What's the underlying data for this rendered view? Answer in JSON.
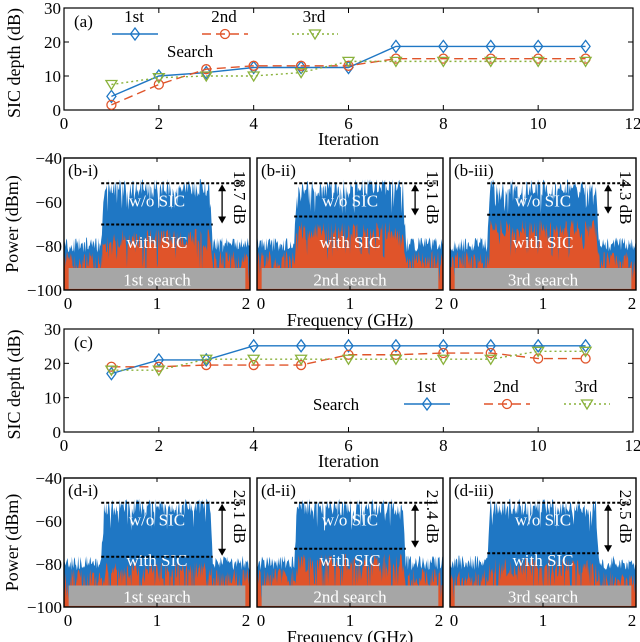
{
  "chart_data": [
    {
      "type": "line",
      "panel": "(a)",
      "xlabel": "Iteration",
      "ylabel": "SIC depth (dB)",
      "xlim": [
        0,
        12
      ],
      "ylim": [
        0,
        30
      ],
      "xticks": [
        0,
        2,
        4,
        6,
        8,
        10,
        12
      ],
      "yticks": [
        0,
        10,
        20,
        30
      ],
      "legend_title": "Search",
      "legend_placement": "top-left",
      "x": [
        1,
        2,
        3,
        4,
        5,
        6,
        7,
        8,
        9,
        10,
        11
      ],
      "series": [
        {
          "name": "1st",
          "color": "#1f77c4",
          "marker": "diamond",
          "dash": "solid",
          "values": [
            4,
            10,
            11,
            12.5,
            12.5,
            12.5,
            18.7,
            18.7,
            18.7,
            18.7,
            18.7
          ]
        },
        {
          "name": "2nd",
          "color": "#e0542a",
          "marker": "circle",
          "dash": "dashed",
          "values": [
            1.5,
            7.5,
            12,
            13,
            13,
            13,
            15.1,
            15.1,
            15.1,
            15.1,
            15.1
          ]
        },
        {
          "name": "3rd",
          "color": "#8ab23c",
          "marker": "triangle-down",
          "dash": "dotted",
          "values": [
            7.5,
            9.5,
            10,
            10,
            11,
            14.3,
            14.3,
            14.3,
            14.3,
            14.3,
            14.3
          ]
        }
      ]
    },
    {
      "type": "area",
      "group": "b",
      "xlabel": "Frequency (GHz)",
      "ylabel": "Power (dBm)",
      "xlim": [
        0,
        2
      ],
      "ylim": [
        -100,
        -40
      ],
      "xticks": [
        0,
        1,
        2
      ],
      "yticks": [
        -40,
        -60,
        -80,
        -100
      ],
      "series_labels": {
        "wo": "w/o SIC",
        "with": "with SIC"
      },
      "colors": {
        "wo": "#1f77c4",
        "with": "#e0542a",
        "banner": "#a6a6a6"
      },
      "panels": [
        {
          "label": "(b-i)",
          "banner": "1st search",
          "depth_label": "18.7 dB",
          "top_dbm": -51.5,
          "bottom_dbm": -70.2,
          "band_ghz": [
            0.4,
            1.6
          ]
        },
        {
          "label": "(b-ii)",
          "banner": "2nd search",
          "depth_label": "15.1 dB",
          "top_dbm": -51.5,
          "bottom_dbm": -66.6,
          "band_ghz": [
            0.4,
            1.6
          ]
        },
        {
          "label": "(b-iii)",
          "banner": "3rd search",
          "depth_label": "14.3 dB",
          "top_dbm": -51.5,
          "bottom_dbm": -65.8,
          "band_ghz": [
            0.4,
            1.6
          ]
        }
      ]
    },
    {
      "type": "line",
      "panel": "(c)",
      "xlabel": "Iteration",
      "ylabel": "SIC depth (dB)",
      "xlim": [
        0,
        12
      ],
      "ylim": [
        0,
        30
      ],
      "xticks": [
        0,
        2,
        4,
        6,
        8,
        10,
        12
      ],
      "yticks": [
        0,
        10,
        20,
        30
      ],
      "legend_title": "Search",
      "legend_placement": "bottom-right",
      "x": [
        1,
        2,
        3,
        4,
        5,
        6,
        7,
        8,
        9,
        10,
        11
      ],
      "series": [
        {
          "name": "1st",
          "color": "#1f77c4",
          "marker": "diamond",
          "dash": "solid",
          "values": [
            17,
            21,
            21,
            25.1,
            25.1,
            25.1,
            25.1,
            25.1,
            25.1,
            25.1,
            25.1
          ]
        },
        {
          "name": "2nd",
          "color": "#e0542a",
          "marker": "circle",
          "dash": "dashed",
          "values": [
            19,
            19,
            19.5,
            19.5,
            19.5,
            22.5,
            22.5,
            23,
            23,
            21.4,
            21.4
          ]
        },
        {
          "name": "3rd",
          "color": "#8ab23c",
          "marker": "triangle-down",
          "dash": "dotted",
          "values": [
            18,
            18,
            21.2,
            21.2,
            21.2,
            21.2,
            21.2,
            21.2,
            21.2,
            23.5,
            23.5
          ]
        }
      ]
    },
    {
      "type": "area",
      "group": "d",
      "xlabel": "Frequency (GHz)",
      "ylabel": "Power (dBm)",
      "xlim": [
        0,
        2
      ],
      "ylim": [
        -100,
        -40
      ],
      "xticks": [
        0,
        1,
        2
      ],
      "yticks": [
        -40,
        -60,
        -80,
        -100
      ],
      "series_labels": {
        "wo": "w/o SIC",
        "with": "with SIC"
      },
      "colors": {
        "wo": "#1f77c4",
        "with": "#e0542a",
        "banner": "#a6a6a6"
      },
      "panels": [
        {
          "label": "(d-i)",
          "banner": "1st search",
          "depth_label": "25.1 dB",
          "top_dbm": -51.5,
          "bottom_dbm": -76.6,
          "band_ghz": [
            0.4,
            1.6
          ]
        },
        {
          "label": "(d-ii)",
          "banner": "2nd search",
          "depth_label": "21.4 dB",
          "top_dbm": -51.5,
          "bottom_dbm": -72.9,
          "band_ghz": [
            0.4,
            1.6
          ]
        },
        {
          "label": "(d-iii)",
          "banner": "3rd search",
          "depth_label": "23.5 dB",
          "top_dbm": -51.5,
          "bottom_dbm": -75.0,
          "band_ghz": [
            0.4,
            1.6
          ]
        }
      ]
    }
  ]
}
